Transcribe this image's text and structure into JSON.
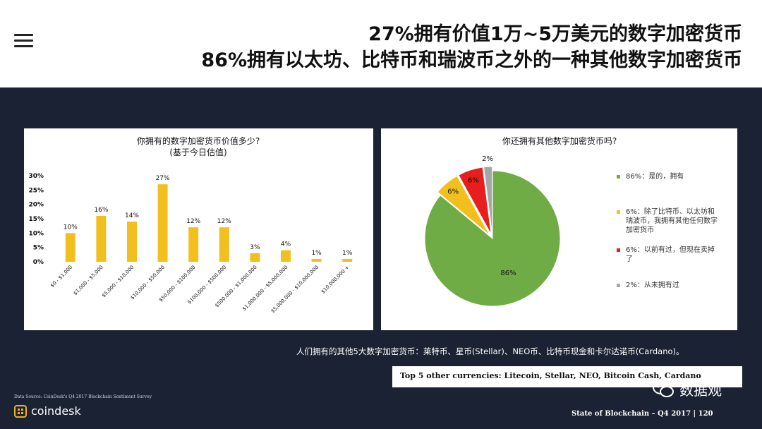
{
  "header": {
    "title_line1": "27%拥有价值1万~5万美元的数字加密货币",
    "title_line2": "86%拥有以太坊、比特币和瑞波币之外的一种其他数字加密货币"
  },
  "chart_data": [
    {
      "type": "bar",
      "title": "你拥有的数字加密货币价值多少?",
      "subtitle": "(基于今日估值)",
      "categories": [
        "$0 - $1,000",
        "$1,000 - $5,000",
        "$5,000 - $10,000",
        "$10,000 - $50,000",
        "$50,000 - $100,000",
        "$100,000 - $500,000",
        "$500,000 - $1,000,000",
        "$1,000,000 - $5,000,000",
        "$5,000,000 - $10,000,000",
        "$10,000,000 +"
      ],
      "values": [
        10,
        16,
        14,
        27,
        12,
        12,
        3,
        4,
        1,
        1
      ],
      "value_labels": [
        "10%",
        "16%",
        "14%",
        "27%",
        "12%",
        "12%",
        "3%",
        "4%",
        "1%",
        "1%"
      ],
      "y_ticks": [
        "30%",
        "25%",
        "20%",
        "15%",
        "10%",
        "5%",
        "0%"
      ],
      "ylim": [
        0,
        30
      ],
      "color": "#f2c01e",
      "grid": false
    },
    {
      "type": "pie",
      "title": "你还拥有其他数字加密货币吗?",
      "slices": [
        {
          "label": "86%：是的，拥有",
          "value": 86,
          "value_label": "86%",
          "color": "#6fac46"
        },
        {
          "label": "6%：除了比特币、以太坊和瑞波币，我拥有其他任何数字加密货币",
          "value": 6,
          "value_label": "6%",
          "color": "#f2c01e"
        },
        {
          "label": "6%：以前有过，但现在卖掉了",
          "value": 6,
          "value_label": "6%",
          "color": "#e61e1e"
        },
        {
          "label": "2%：从未拥有过",
          "value": 2,
          "value_label": "2%",
          "color": "#a6a6a6"
        }
      ],
      "legend_position": "right"
    }
  ],
  "caption": "人们拥有的其他5大数字加密货币：莱特币、星币(Stellar)、NEO币、比特币现金和卡尔达诺币(Cardano)。",
  "top5": "Top 5 other currencies: Litecoin, Stellar, NEO, Bitcoin Cash, Cardano",
  "source": "Data Source: CoinDesk's Q4 2017 Blockchain Sentiment Survey",
  "logo_text": "coindesk",
  "footer": "State of Blockchain – Q4 2017    |    120",
  "watermark_text": "数据观",
  "icons": {
    "menu": "hamburger-icon",
    "brand": "coindesk-logo-icon",
    "wechat": "wechat-icon"
  }
}
